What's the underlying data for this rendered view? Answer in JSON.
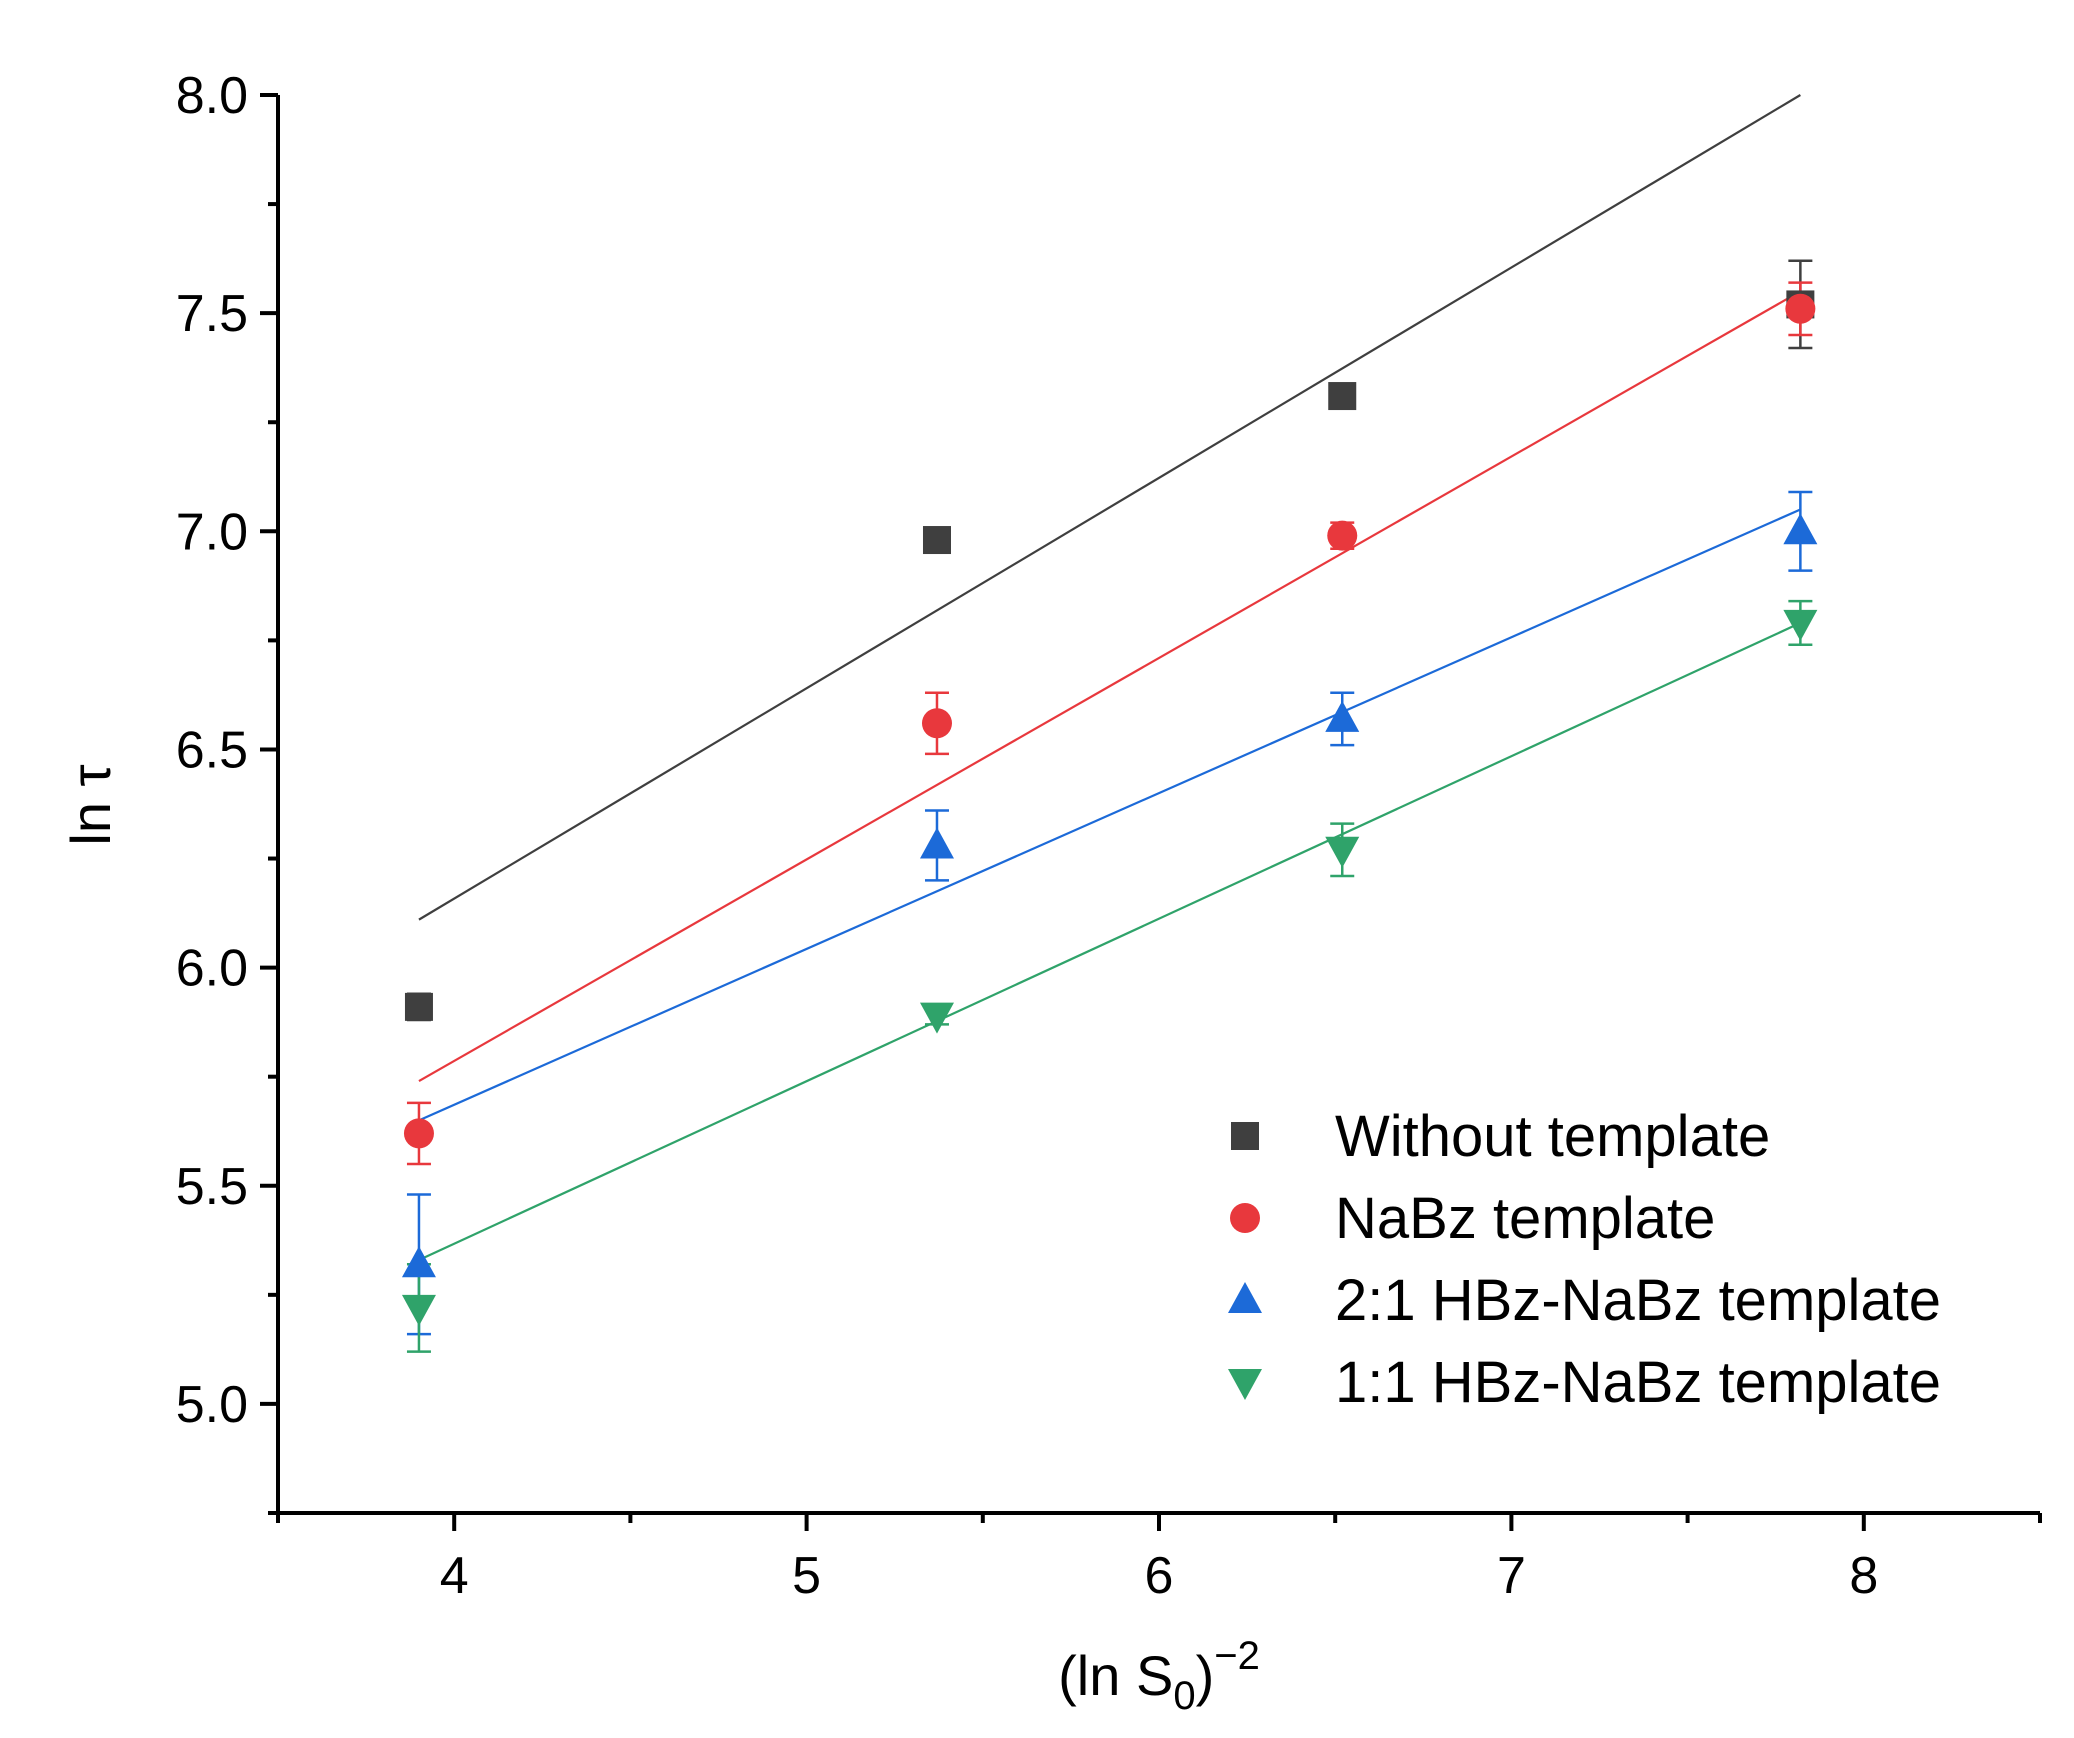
{
  "chart_data": {
    "type": "scatter",
    "xlabel": {
      "main": "(ln S",
      "sub": "0",
      "close": ")",
      "sup": "−2"
    },
    "ylabel": "ln τ",
    "xlim": [
      3.5,
      8.5
    ],
    "ylim": [
      4.75,
      8.0
    ],
    "x_ticks": [
      4,
      5,
      6,
      7,
      8
    ],
    "x_tick_labels": [
      "4",
      "5",
      "6",
      "7",
      "8"
    ],
    "x_minor_ticks": [
      3.5,
      4.5,
      5.5,
      6.5,
      7.5,
      8.5
    ],
    "y_ticks": [
      5.0,
      5.5,
      6.0,
      6.5,
      7.0,
      7.5,
      8.0
    ],
    "y_tick_labels": [
      "5.0",
      "5.5",
      "6.0",
      "6.5",
      "7.0",
      "7.5",
      "8.0"
    ],
    "y_minor_ticks": [
      4.75,
      5.25,
      5.75,
      6.25,
      6.75,
      7.25,
      7.75
    ],
    "legend_position": "bottom-right",
    "series": [
      {
        "name": "Without template",
        "color": "#3f3f3f",
        "marker": "square",
        "x": [
          3.9,
          5.37,
          6.52,
          7.82
        ],
        "y": [
          5.91,
          6.98,
          7.31,
          7.52
        ],
        "err": [
          0.03,
          0.02,
          0.02,
          0.1
        ],
        "fit": {
          "x": [
            3.9,
            7.82
          ],
          "y": [
            6.11,
            8.0
          ]
        }
      },
      {
        "name": "NaBz template",
        "color": "#e8383d",
        "marker": "circle",
        "x": [
          3.9,
          5.37,
          6.52,
          7.82
        ],
        "y": [
          5.62,
          6.56,
          6.99,
          7.51
        ],
        "err": [
          0.07,
          0.07,
          0.03,
          0.06
        ],
        "fit": {
          "x": [
            3.9,
            7.82
          ],
          "y": [
            5.74,
            7.55
          ]
        }
      },
      {
        "name": "2:1 HBz-NaBz template",
        "color": "#1c6ad8",
        "marker": "triangle-up",
        "x": [
          3.9,
          5.37,
          6.52,
          7.82
        ],
        "y": [
          5.32,
          6.28,
          6.57,
          7.0
        ],
        "err": [
          0.16,
          0.08,
          0.06,
          0.09
        ],
        "fit": {
          "x": [
            3.9,
            7.82
          ],
          "y": [
            5.65,
            7.05
          ]
        }
      },
      {
        "name": "1:1 HBz-NaBz template",
        "color": "#2fa36a",
        "marker": "triangle-down",
        "x": [
          3.9,
          5.37,
          6.52,
          7.82
        ],
        "y": [
          5.22,
          5.89,
          6.27,
          6.79
        ],
        "err": [
          0.1,
          0.02,
          0.06,
          0.05
        ],
        "fit": {
          "x": [
            3.9,
            7.82
          ],
          "y": [
            5.33,
            6.79
          ]
        }
      }
    ]
  }
}
